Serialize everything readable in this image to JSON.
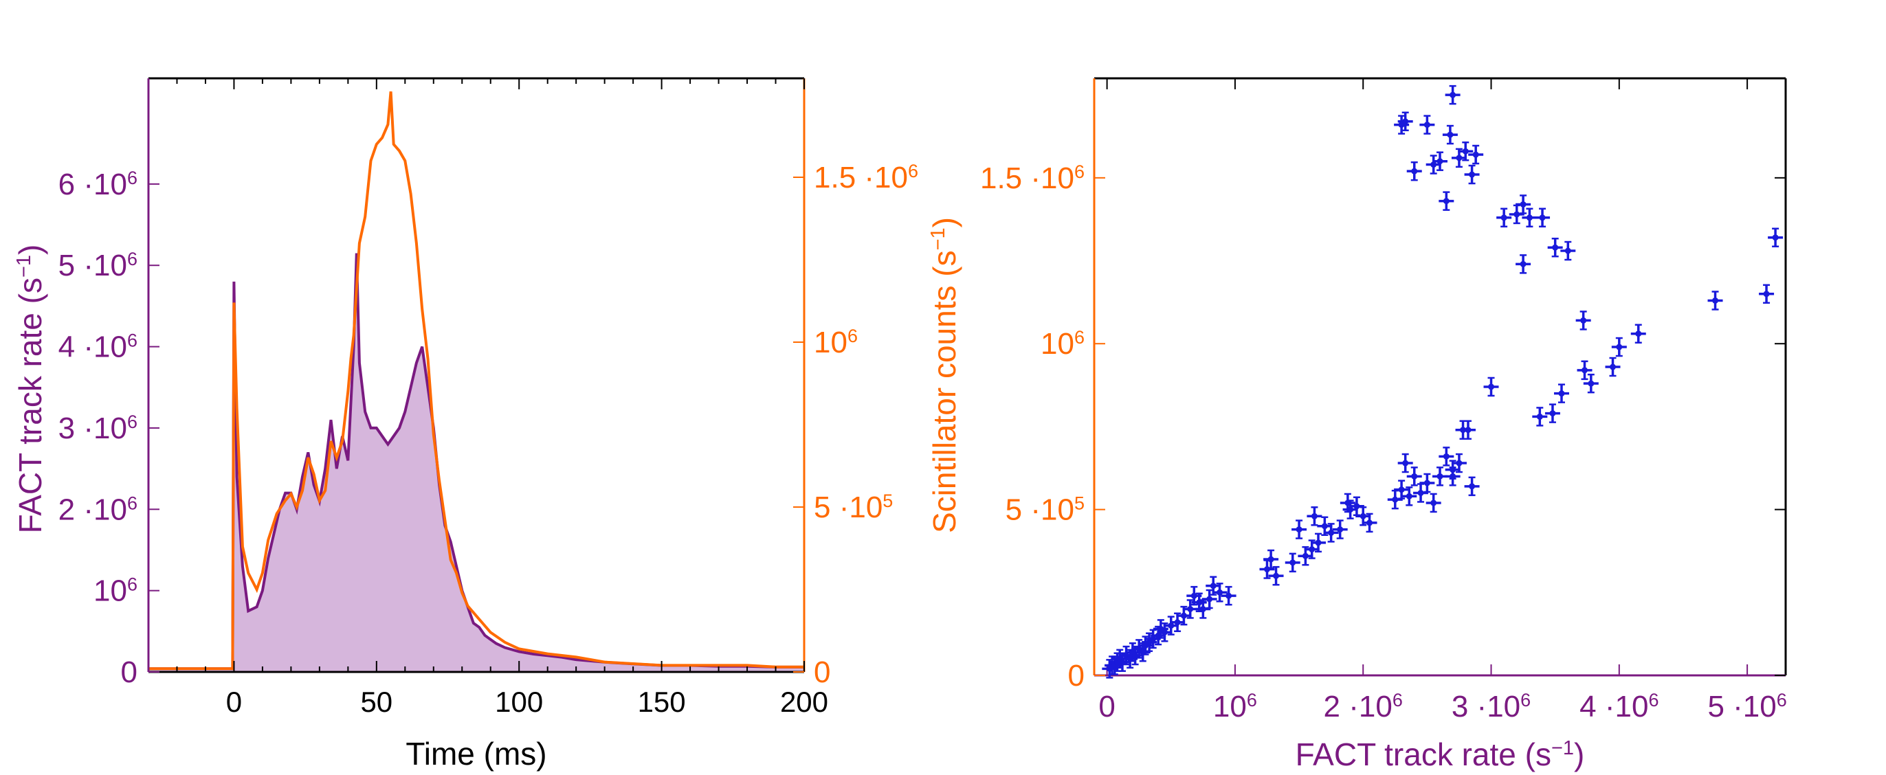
{
  "colors": {
    "fact": "#7a1a80",
    "scint": "#ff6a00",
    "fill": "#d6b6dc",
    "points": "#1a1adb",
    "axis_time": "#000000"
  },
  "chart_data": [
    {
      "type": "line",
      "xlabel": "Time (ms)",
      "ylabel_left": "FACT track rate (s",
      "ylabel_left_sup": "−1",
      "ylabel_left_end": ")",
      "ylabel_right": "Scintillator counts (s",
      "ylabel_right_sup": "−1",
      "ylabel_right_end": ")",
      "xlim": [
        -30,
        200
      ],
      "ylim_left": [
        0,
        7.3
      ],
      "ylim_right": [
        0,
        1.8
      ],
      "x_ticks": [
        0,
        50,
        100,
        150,
        200
      ],
      "x_tick_labels": [
        "0",
        "50",
        "100",
        "150",
        "200"
      ],
      "y_left_ticks": [
        {
          "v": 0,
          "m": "0",
          "e": ""
        },
        {
          "v": 1,
          "m": "10",
          "e": "6"
        },
        {
          "v": 2,
          "m": "2 ·10",
          "e": "6"
        },
        {
          "v": 3,
          "m": "3 ·10",
          "e": "6"
        },
        {
          "v": 4,
          "m": "4 ·10",
          "e": "6"
        },
        {
          "v": 5,
          "m": "5 ·10",
          "e": "6"
        },
        {
          "v": 6,
          "m": "6 ·10",
          "e": "6"
        }
      ],
      "y_right_ticks": [
        {
          "v": 0,
          "m": "0",
          "e": ""
        },
        {
          "v": 0.5,
          "m": "5 ·10",
          "e": "5"
        },
        {
          "v": 1.0,
          "m": "10",
          "e": "6"
        },
        {
          "v": 1.5,
          "m": "1.5 ·10",
          "e": "6"
        }
      ],
      "series": [
        {
          "name": "FACT track rate (units of 10^6 s^-1)",
          "axis": "left",
          "points": [
            [
              -30,
              0.04
            ],
            [
              -0.5,
              0.04
            ],
            [
              0,
              4.8
            ],
            [
              1,
              2.4
            ],
            [
              3,
              1.3
            ],
            [
              5,
              0.75
            ],
            [
              8,
              0.8
            ],
            [
              10,
              1.0
            ],
            [
              12,
              1.4
            ],
            [
              14,
              1.7
            ],
            [
              16,
              2.0
            ],
            [
              18,
              2.2
            ],
            [
              20,
              2.2
            ],
            [
              22,
              2.0
            ],
            [
              24,
              2.4
            ],
            [
              26,
              2.7
            ],
            [
              28,
              2.3
            ],
            [
              30,
              2.1
            ],
            [
              32,
              2.5
            ],
            [
              34,
              3.1
            ],
            [
              36,
              2.5
            ],
            [
              38,
              2.9
            ],
            [
              40,
              2.6
            ],
            [
              42,
              4.0
            ],
            [
              43,
              5.15
            ],
            [
              44,
              3.8
            ],
            [
              46,
              3.2
            ],
            [
              48,
              3.0
            ],
            [
              50,
              3.0
            ],
            [
              52,
              2.9
            ],
            [
              54,
              2.8
            ],
            [
              56,
              2.9
            ],
            [
              58,
              3.0
            ],
            [
              60,
              3.2
            ],
            [
              62,
              3.5
            ],
            [
              64,
              3.8
            ],
            [
              66,
              4.0
            ],
            [
              68,
              3.5
            ],
            [
              70,
              3.0
            ],
            [
              72,
              2.3
            ],
            [
              74,
              1.8
            ],
            [
              76,
              1.6
            ],
            [
              78,
              1.3
            ],
            [
              80,
              1.0
            ],
            [
              82,
              0.8
            ],
            [
              84,
              0.6
            ],
            [
              86,
              0.55
            ],
            [
              88,
              0.45
            ],
            [
              90,
              0.4
            ],
            [
              92,
              0.35
            ],
            [
              95,
              0.3
            ],
            [
              100,
              0.25
            ],
            [
              105,
              0.22
            ],
            [
              110,
              0.2
            ],
            [
              115,
              0.18
            ],
            [
              120,
              0.15
            ],
            [
              130,
              0.12
            ],
            [
              140,
              0.1
            ],
            [
              150,
              0.08
            ],
            [
              160,
              0.08
            ],
            [
              170,
              0.07
            ],
            [
              180,
              0.07
            ],
            [
              190,
              0.06
            ],
            [
              200,
              0.06
            ]
          ]
        },
        {
          "name": "Scintillator counts (units of 10^6 s^-1)",
          "axis": "right",
          "points": [
            [
              -30,
              0.01
            ],
            [
              -0.5,
              0.01
            ],
            [
              0,
              1.12
            ],
            [
              1,
              0.8
            ],
            [
              3,
              0.38
            ],
            [
              5,
              0.3
            ],
            [
              8,
              0.25
            ],
            [
              10,
              0.3
            ],
            [
              12,
              0.4
            ],
            [
              15,
              0.48
            ],
            [
              18,
              0.52
            ],
            [
              20,
              0.54
            ],
            [
              22,
              0.5
            ],
            [
              24,
              0.55
            ],
            [
              26,
              0.65
            ],
            [
              28,
              0.6
            ],
            [
              30,
              0.52
            ],
            [
              32,
              0.55
            ],
            [
              34,
              0.7
            ],
            [
              36,
              0.65
            ],
            [
              38,
              0.7
            ],
            [
              40,
              0.85
            ],
            [
              41,
              0.95
            ],
            [
              42,
              1.02
            ],
            [
              44,
              1.3
            ],
            [
              46,
              1.38
            ],
            [
              48,
              1.55
            ],
            [
              50,
              1.6
            ],
            [
              52,
              1.62
            ],
            [
              54,
              1.66
            ],
            [
              55,
              1.76
            ],
            [
              56,
              1.6
            ],
            [
              58,
              1.58
            ],
            [
              60,
              1.55
            ],
            [
              62,
              1.45
            ],
            [
              64,
              1.3
            ],
            [
              66,
              1.1
            ],
            [
              68,
              0.95
            ],
            [
              70,
              0.72
            ],
            [
              72,
              0.58
            ],
            [
              74,
              0.46
            ],
            [
              76,
              0.34
            ],
            [
              78,
              0.3
            ],
            [
              80,
              0.24
            ],
            [
              82,
              0.2
            ],
            [
              85,
              0.17
            ],
            [
              90,
              0.12
            ],
            [
              95,
              0.09
            ],
            [
              100,
              0.07
            ],
            [
              110,
              0.055
            ],
            [
              120,
              0.045
            ],
            [
              130,
              0.03
            ],
            [
              140,
              0.025
            ],
            [
              150,
              0.02
            ],
            [
              160,
              0.02
            ],
            [
              170,
              0.02
            ],
            [
              180,
              0.02
            ],
            [
              190,
              0.015
            ],
            [
              200,
              0.015
            ]
          ]
        }
      ]
    },
    {
      "type": "scatter",
      "xlabel": "FACT track rate (s",
      "xlabel_sup": "−1",
      "xlabel_end": ")",
      "ylabel": "Scintillator counts (s",
      "ylabel_sup": "−1",
      "ylabel_end": ")",
      "xlim": [
        -0.1,
        5.3
      ],
      "ylim": [
        0,
        1.8
      ],
      "x_ticks": [
        {
          "v": 0,
          "m": "0",
          "e": ""
        },
        {
          "v": 1,
          "m": "10",
          "e": "6"
        },
        {
          "v": 2,
          "m": "2 ·10",
          "e": "6"
        },
        {
          "v": 3,
          "m": "3 ·10",
          "e": "6"
        },
        {
          "v": 4,
          "m": "4 ·10",
          "e": "6"
        },
        {
          "v": 5,
          "m": "5 ·10",
          "e": "6"
        }
      ],
      "y_ticks": [
        {
          "v": 0,
          "m": "0",
          "e": ""
        },
        {
          "v": 0.5,
          "m": "5 ·10",
          "e": "5"
        },
        {
          "v": 1.0,
          "m": "10",
          "e": "6"
        },
        {
          "v": 1.5,
          "m": "1.5 ·10",
          "e": "6"
        }
      ],
      "units_note": "x in 10^6 s^-1, y in 10^6 s^-1",
      "points": [
        [
          0.02,
          0.02
        ],
        [
          0.04,
          0.03
        ],
        [
          0.06,
          0.03
        ],
        [
          0.08,
          0.04
        ],
        [
          0.1,
          0.05
        ],
        [
          0.12,
          0.04
        ],
        [
          0.15,
          0.06
        ],
        [
          0.18,
          0.05
        ],
        [
          0.2,
          0.07
        ],
        [
          0.22,
          0.06
        ],
        [
          0.25,
          0.08
        ],
        [
          0.28,
          0.07
        ],
        [
          0.3,
          0.09
        ],
        [
          0.33,
          0.1
        ],
        [
          0.36,
          0.11
        ],
        [
          0.4,
          0.12
        ],
        [
          0.42,
          0.14
        ],
        [
          0.45,
          0.13
        ],
        [
          0.5,
          0.15
        ],
        [
          0.55,
          0.16
        ],
        [
          0.6,
          0.18
        ],
        [
          0.65,
          0.2
        ],
        [
          0.68,
          0.24
        ],
        [
          0.72,
          0.22
        ],
        [
          0.75,
          0.2
        ],
        [
          0.8,
          0.23
        ],
        [
          0.83,
          0.27
        ],
        [
          0.88,
          0.25
        ],
        [
          0.95,
          0.24
        ],
        [
          1.25,
          0.32
        ],
        [
          1.28,
          0.35
        ],
        [
          1.32,
          0.3
        ],
        [
          1.45,
          0.34
        ],
        [
          1.5,
          0.44
        ],
        [
          1.55,
          0.36
        ],
        [
          1.6,
          0.38
        ],
        [
          1.62,
          0.48
        ],
        [
          1.65,
          0.4
        ],
        [
          1.7,
          0.45
        ],
        [
          1.75,
          0.43
        ],
        [
          1.82,
          0.44
        ],
        [
          1.88,
          0.52
        ],
        [
          1.9,
          0.5
        ],
        [
          1.95,
          0.51
        ],
        [
          2.0,
          0.48
        ],
        [
          2.05,
          0.46
        ],
        [
          2.25,
          0.53
        ],
        [
          2.3,
          0.56
        ],
        [
          2.33,
          0.64
        ],
        [
          2.36,
          0.54
        ],
        [
          2.4,
          0.6
        ],
        [
          2.45,
          0.55
        ],
        [
          2.5,
          0.58
        ],
        [
          2.55,
          0.52
        ],
        [
          2.6,
          0.6
        ],
        [
          2.65,
          0.66
        ],
        [
          2.7,
          0.62
        ],
        [
          2.75,
          0.64
        ],
        [
          2.78,
          0.74
        ],
        [
          2.82,
          0.74
        ],
        [
          2.85,
          0.57
        ],
        [
          2.7,
          0.6
        ],
        [
          3.0,
          0.87
        ],
        [
          3.38,
          0.78
        ],
        [
          3.48,
          0.79
        ],
        [
          3.55,
          0.85
        ],
        [
          3.72,
          1.07
        ],
        [
          3.73,
          0.92
        ],
        [
          3.78,
          0.88
        ],
        [
          3.95,
          0.93
        ],
        [
          4.0,
          0.99
        ],
        [
          4.15,
          1.03
        ],
        [
          4.75,
          1.13
        ],
        [
          5.15,
          1.15
        ],
        [
          5.22,
          1.32
        ],
        [
          2.3,
          1.66
        ],
        [
          2.33,
          1.67
        ],
        [
          2.4,
          1.52
        ],
        [
          2.5,
          1.66
        ],
        [
          2.55,
          1.54
        ],
        [
          2.6,
          1.55
        ],
        [
          2.65,
          1.43
        ],
        [
          2.68,
          1.63
        ],
        [
          2.7,
          1.75
        ],
        [
          2.75,
          1.56
        ],
        [
          2.8,
          1.58
        ],
        [
          2.85,
          1.51
        ],
        [
          2.88,
          1.57
        ],
        [
          3.1,
          1.38
        ],
        [
          3.2,
          1.39
        ],
        [
          3.25,
          1.42
        ],
        [
          3.3,
          1.38
        ],
        [
          3.25,
          1.24
        ],
        [
          3.4,
          1.38
        ],
        [
          3.5,
          1.29
        ],
        [
          3.6,
          1.28
        ]
      ]
    }
  ]
}
